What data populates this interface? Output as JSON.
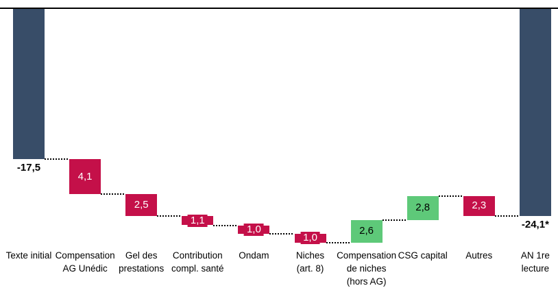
{
  "chart_data": {
    "type": "bar",
    "subtype": "waterfall",
    "title": "",
    "xlabel": "",
    "ylabel": "",
    "baseline_value": 0,
    "ylim": [
      -27.2,
      0
    ],
    "direction": "deficits plotted downward from zero baseline at top",
    "grid": false,
    "legend": false,
    "connector_style": "dotted",
    "colors": {
      "total": "#384D68",
      "deficit_increase": "#C41049",
      "deficit_decrease": "#5EC979",
      "connector": "#000000",
      "baseline": "#000000",
      "value_text_on_red": "#FFFFFF",
      "value_text_on_green": "#000000",
      "total_value_text": "#000000"
    },
    "steps": [
      {
        "category": "Texte initial",
        "label": "-17,5",
        "value": -17.5,
        "kind": "total",
        "cumulative": -17.5
      },
      {
        "category": "Compensation\nAG Unédic",
        "label": "4,1",
        "value": 4.1,
        "kind": "deficit_increase",
        "cumulative": -21.6
      },
      {
        "category": "Gel des\nprestations",
        "label": "2,5",
        "value": 2.5,
        "kind": "deficit_increase",
        "cumulative": -24.1
      },
      {
        "category": "Contribution\ncompl. santé",
        "label": "1,1",
        "value": 1.1,
        "kind": "deficit_increase",
        "cumulative": -25.2
      },
      {
        "category": "Ondam",
        "label": "1,0",
        "value": 1.0,
        "kind": "deficit_increase",
        "cumulative": -26.2
      },
      {
        "category": "Niches\n(art. 8)",
        "label": "1,0",
        "value": 1.0,
        "kind": "deficit_increase",
        "cumulative": -27.2
      },
      {
        "category": "Compensation\nde niches\n(hors AG)",
        "label": "2,6",
        "value": 2.6,
        "kind": "deficit_decrease",
        "cumulative": -24.6
      },
      {
        "category": "CSG capital",
        "label": "2,8",
        "value": 2.8,
        "kind": "deficit_decrease",
        "cumulative": -21.8
      },
      {
        "category": "Autres",
        "label": "2,3",
        "value": 2.3,
        "kind": "deficit_increase",
        "cumulative": -24.1
      },
      {
        "category": "AN 1re\nlecture",
        "label": "-24,1*",
        "value": -24.1,
        "kind": "total",
        "cumulative": -24.1,
        "leader_tick": true
      }
    ]
  }
}
